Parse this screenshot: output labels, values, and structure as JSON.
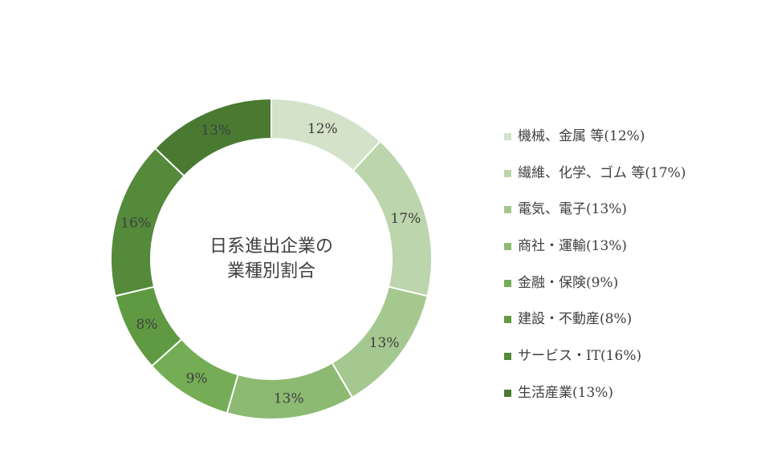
{
  "chart_data": {
    "type": "pie",
    "categories": [
      "機械、金属 等",
      "繊維、化学、ゴム 等",
      "電気、電子",
      "商社・運輸",
      "金融・保険",
      "建設・不動産",
      "サービス・IT",
      "生活産業"
    ],
    "values": [
      12,
      17,
      13,
      13,
      9,
      8,
      16,
      13
    ],
    "data_labels": [
      "12%",
      "17%",
      "13%",
      "13%",
      "9%",
      "8%",
      "16%",
      "13%"
    ],
    "legend_labels": [
      "機械、金属 等(12%)",
      "繊維、化学、ゴム 等(17%)",
      "電気、電子(13%)",
      "商社・運輸(13%)",
      "金融・保険(9%)",
      "建設・不動産(8%)",
      "サービス・IT(16%)",
      "生活産業(13%)"
    ],
    "colors": [
      "#d3e2c9",
      "#bcd5ac",
      "#a4c88f",
      "#8cba72",
      "#74ad55",
      "#5f9a42",
      "#548a3a",
      "#4a7a32"
    ],
    "center_text": [
      "日系進出企業の",
      "業種別割合"
    ],
    "legend_position": "right",
    "chart_style": "donut"
  }
}
